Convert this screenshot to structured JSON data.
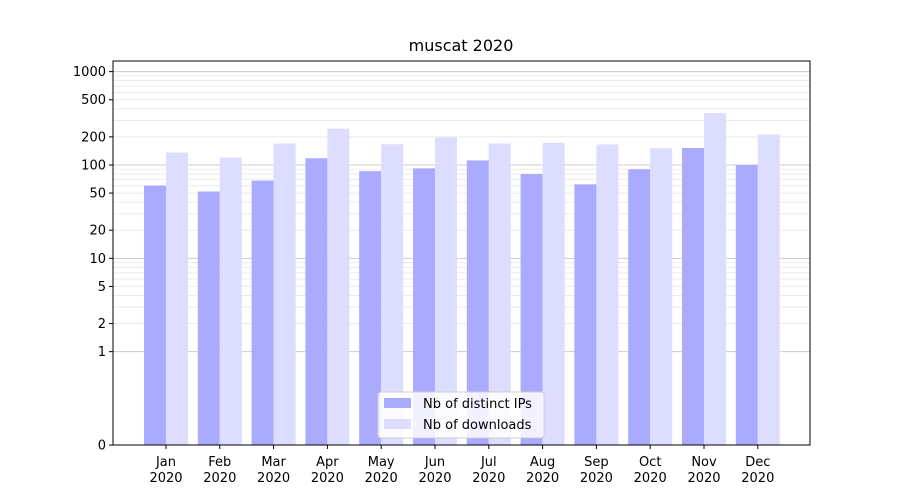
{
  "chart_data": {
    "type": "bar",
    "title": "muscat 2020",
    "xlabel": "",
    "ylabel": "",
    "yscale": "symlog",
    "ylim": [
      0,
      1300
    ],
    "categories": [
      [
        "Jan",
        "2020"
      ],
      [
        "Feb",
        "2020"
      ],
      [
        "Mar",
        "2020"
      ],
      [
        "Apr",
        "2020"
      ],
      [
        "May",
        "2020"
      ],
      [
        "Jun",
        "2020"
      ],
      [
        "Jul",
        "2020"
      ],
      [
        "Aug",
        "2020"
      ],
      [
        "Sep",
        "2020"
      ],
      [
        "Oct",
        "2020"
      ],
      [
        "Nov",
        "2020"
      ],
      [
        "Dec",
        "2020"
      ]
    ],
    "yticks": [
      {
        "value": 0,
        "label": "0"
      },
      {
        "value": 1,
        "label": "1"
      },
      {
        "value": 2,
        "label": "2"
      },
      {
        "value": 5,
        "label": "5"
      },
      {
        "value": 10,
        "label": "10"
      },
      {
        "value": 20,
        "label": "20"
      },
      {
        "value": 50,
        "label": "50"
      },
      {
        "value": 100,
        "label": "100"
      },
      {
        "value": 200,
        "label": "200"
      },
      {
        "value": 500,
        "label": "500"
      },
      {
        "value": 1000,
        "label": "1000"
      }
    ],
    "series": [
      {
        "name": "Nb of distinct IPs",
        "color": "#aaaaff",
        "values": [
          60,
          52,
          68,
          118,
          86,
          92,
          112,
          80,
          62,
          90,
          152,
          100
        ]
      },
      {
        "name": "Nb of downloads",
        "color": "#ddddff",
        "values": [
          136,
          120,
          170,
          245,
          167,
          197,
          170,
          173,
          166,
          151,
          360,
          212
        ]
      }
    ],
    "grid": true,
    "legend_position": "bottom-center"
  }
}
